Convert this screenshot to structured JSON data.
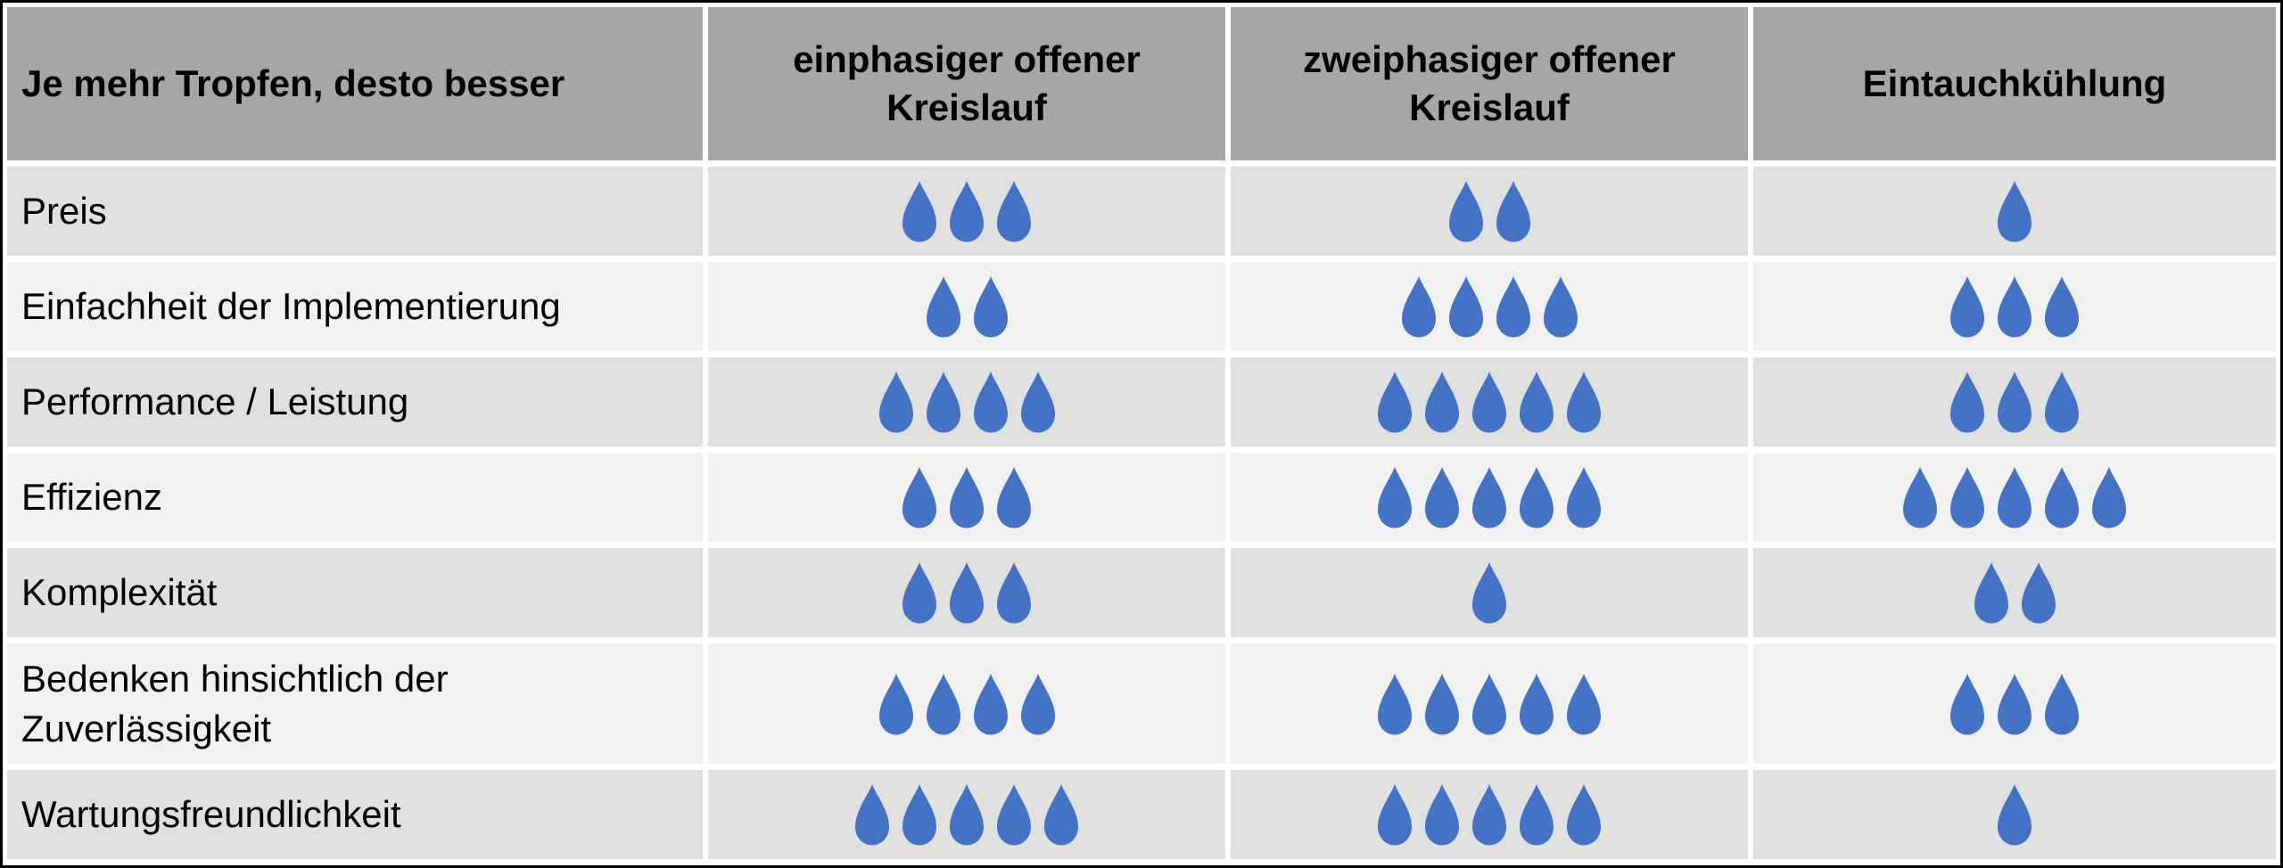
{
  "table": {
    "legend": "Je mehr Tropfen, desto besser",
    "columns": [
      "einphasiger offener Kreislauf",
      "zweiphasiger offener Kreislauf",
      "Eintauchkühlung"
    ],
    "rows": [
      {
        "label": "Preis",
        "values": [
          3,
          2,
          1
        ]
      },
      {
        "label": "Einfachheit der Implementierung",
        "values": [
          2,
          4,
          3
        ]
      },
      {
        "label": "Performance / Leistung",
        "values": [
          4,
          5,
          3
        ]
      },
      {
        "label": "Effizienz",
        "values": [
          3,
          5,
          5
        ]
      },
      {
        "label": "Komplexität",
        "values": [
          3,
          1,
          2
        ]
      },
      {
        "label": "Bedenken hinsichtlich der\nZuverlässigkeit",
        "values": [
          4,
          5,
          3
        ]
      },
      {
        "label": "Wartungsfreundlichkeit",
        "values": [
          5,
          5,
          1
        ]
      }
    ],
    "rating_icon": "droplet-icon",
    "rating_scale_max": 5
  },
  "colors": {
    "droplet": "#4472c4",
    "header_bg": "#a6a6a6",
    "row_dark": "#e0e0e0",
    "row_light": "#f1f1f1",
    "border": "#000000",
    "gap": "#ffffff"
  },
  "chart_data": {
    "type": "table",
    "title": "Je mehr Tropfen, desto besser",
    "legend_note": "Je mehr Tropfen, desto besser",
    "categories": [
      "Preis",
      "Einfachheit der Implementierung",
      "Performance / Leistung",
      "Effizienz",
      "Komplexität",
      "Bedenken hinsichtlich der Zuverlässigkeit",
      "Wartungsfreundlichkeit"
    ],
    "series": [
      {
        "name": "einphasiger offener Kreislauf",
        "values": [
          3,
          2,
          4,
          3,
          3,
          4,
          5
        ]
      },
      {
        "name": "zweiphasiger offener Kreislauf",
        "values": [
          2,
          4,
          5,
          5,
          1,
          5,
          5
        ]
      },
      {
        "name": "Eintauchkühlung",
        "values": [
          1,
          3,
          3,
          5,
          2,
          3,
          1
        ]
      }
    ],
    "value_range": [
      0,
      5
    ],
    "unit": "Tropfen",
    "layout": "rating matrix, droplet icons per cell, banded rows"
  }
}
